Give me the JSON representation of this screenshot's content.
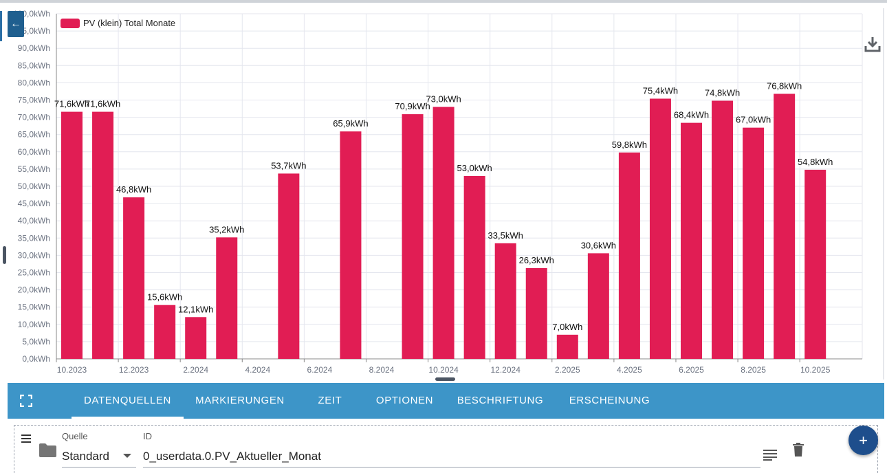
{
  "chart_data": {
    "type": "bar",
    "series_name": "PV (klein) Total Monate",
    "unit": "kWh",
    "color": "#e11d54",
    "ylim": [
      0,
      100
    ],
    "ytick_step": 5,
    "ytick_labels": [
      "0,0kWh",
      "5,0kWh",
      "10,0kWh",
      "15,0kWh",
      "20,0kWh",
      "25,0kWh",
      "30,0kWh",
      "35,0kWh",
      "40,0kWh",
      "45,0kWh",
      "50,0kWh",
      "55,0kWh",
      "60,0kWh",
      "65,0kWh",
      "70,0kWh",
      "75,0kWh",
      "80,0kWh",
      "85,0kWh",
      "90,0kWh",
      "95,0kWh",
      "100,0kWh"
    ],
    "x_tick_labels": [
      "10.2023",
      "12.2023",
      "2.2024",
      "4.2024",
      "6.2024",
      "8.2024",
      "10.2024",
      "12.2024",
      "2.2025",
      "4.2025",
      "6.2025",
      "8.2025",
      "10.2025"
    ],
    "months": [
      "10.2023",
      "11.2023",
      "12.2023",
      "1.2024",
      "2.2024",
      "3.2024",
      "4.2024",
      "5.2024",
      "6.2024",
      "7.2024",
      "8.2024",
      "9.2024",
      "10.2024",
      "11.2024",
      "12.2024",
      "1.2025",
      "2.2025",
      "3.2025",
      "4.2025",
      "5.2025",
      "6.2025",
      "7.2025",
      "8.2025",
      "9.2025",
      "10.2025"
    ],
    "values": [
      71.6,
      71.6,
      46.8,
      15.6,
      12.1,
      35.2,
      null,
      53.7,
      null,
      65.9,
      null,
      70.9,
      73.0,
      53.0,
      33.5,
      26.3,
      7.0,
      30.6,
      59.8,
      75.4,
      68.4,
      74.8,
      67.0,
      76.8,
      54.8
    ],
    "data_labels": [
      "71,6kWh",
      "71,6kWh",
      "46,8kWh",
      "15,6kWh",
      "12,1kWh",
      "35,2kWh",
      "",
      "53,7kWh",
      "",
      "65,9kWh",
      "",
      "70,9kWh",
      "73,0kWh",
      "53,0kWh",
      "33,5kWh",
      "26,3kWh",
      "7,0kWh",
      "30,6kWh",
      "59,8kWh",
      "75,4kWh",
      "68,4kWh",
      "74,8kWh",
      "67,0kWh",
      "76,8kWh",
      "54,8kWh"
    ],
    "grid": true,
    "legend": "top-left"
  },
  "toolbar": {
    "back_icon": "arrow-left-icon",
    "download_icon": "download-icon"
  },
  "tabs": [
    {
      "label": "DATENQUELLEN",
      "active": true
    },
    {
      "label": "MARKIERUNGEN",
      "active": false
    },
    {
      "label": "ZEIT",
      "active": false
    },
    {
      "label": "OPTIONEN",
      "active": false
    },
    {
      "label": "BESCHRIFTUNG",
      "active": false
    },
    {
      "label": "ERSCHEINUNG",
      "active": false
    }
  ],
  "datasource": {
    "source_label": "Quelle",
    "source_value": "Standard",
    "id_label": "ID",
    "id_value": "0_userdata.0.PV_Aktueller_Monat",
    "add_label": "+"
  }
}
